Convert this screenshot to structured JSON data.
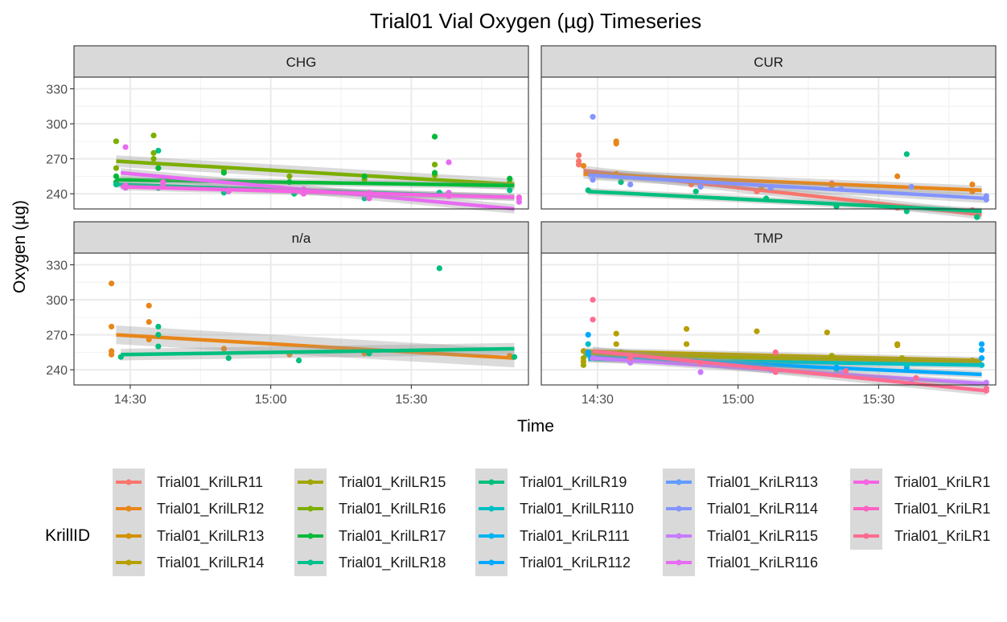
{
  "chart_data": {
    "type": "scatter",
    "title": "Trial01 Vial Oxygen (µg) Timeseries",
    "xlabel": "Time",
    "ylabel": "Oxygen (µg)",
    "x_ticks": [
      "14:30",
      "15:00",
      "15:30"
    ],
    "y_ticks": [
      240,
      270,
      300,
      330
    ],
    "xlim": [
      "14:18",
      "15:55"
    ],
    "ylim": [
      227,
      340
    ],
    "grid": true,
    "legend": {
      "title": "KrillID",
      "position": "bottom",
      "entries": [
        {
          "label": "Trial01_KrilLR11",
          "color": "#F8766D"
        },
        {
          "label": "Trial01_KrilLR12",
          "color": "#E7861B"
        },
        {
          "label": "Trial01_KrilLR13",
          "color": "#D39200"
        },
        {
          "label": "Trial01_KrilLR14",
          "color": "#B79F00"
        },
        {
          "label": "Trial01_KrilLR15",
          "color": "#A3A500"
        },
        {
          "label": "Trial01_KrilLR16",
          "color": "#7CAE00"
        },
        {
          "label": "Trial01_KrilLR17",
          "color": "#00BA38"
        },
        {
          "label": "Trial01_KrilLR18",
          "color": "#00C08B"
        },
        {
          "label": "Trial01_KrilLR19",
          "color": "#00BF7D"
        },
        {
          "label": "Trial01_KrilLR110",
          "color": "#00BFC4"
        },
        {
          "label": "Trial01_KriLR111",
          "color": "#00B4F0"
        },
        {
          "label": "Trial01_KriLR112",
          "color": "#00A9FF"
        },
        {
          "label": "Trial01_KriLR113",
          "color": "#619CFF"
        },
        {
          "label": "Trial01_KriLR114",
          "color": "#8494FF"
        },
        {
          "label": "Trial01_KriLR115",
          "color": "#C77CFF"
        },
        {
          "label": "Trial01_KriLR116",
          "color": "#E76BF3"
        },
        {
          "label": "Trial01_KriLR1",
          "color": "#F564E3"
        },
        {
          "label": "Trial01_KriLR1",
          "color": "#FF61C3"
        },
        {
          "label": "Trial01_KriLR1",
          "color": "#FF6C91"
        }
      ]
    },
    "panels": [
      {
        "name": "CHG",
        "series": [
          {
            "color": "#7CAE00",
            "fit": [
              [
                "14:27",
                268
              ],
              [
                "15:52",
                248
              ]
            ],
            "band": 5,
            "points": [
              [
                "14:27",
                285
              ],
              [
                "14:27",
                262
              ],
              [
                "14:35",
                290
              ],
              [
                "14:35",
                275
              ],
              [
                "14:35",
                270
              ],
              [
                "14:50",
                260
              ],
              [
                "15:04",
                255
              ],
              [
                "15:20",
                252
              ],
              [
                "15:35",
                265
              ],
              [
                "15:35",
                256
              ],
              [
                "15:51",
                250
              ]
            ]
          },
          {
            "color": "#00BA38",
            "fit": [
              [
                "14:27",
                252
              ],
              [
                "15:52",
                247
              ]
            ],
            "band": 3,
            "points": [
              [
                "14:27",
                255
              ],
              [
                "14:27",
                250
              ],
              [
                "14:36",
                262
              ],
              [
                "14:50",
                258
              ],
              [
                "15:04",
                250
              ],
              [
                "15:20",
                255
              ],
              [
                "15:35",
                289
              ],
              [
                "15:35",
                258
              ],
              [
                "15:51",
                253
              ]
            ]
          },
          {
            "color": "#00C08B",
            "fit": [
              [
                "14:27",
                248
              ],
              [
                "15:52",
                237
              ]
            ],
            "band": 3,
            "points": [
              [
                "14:27",
                248
              ],
              [
                "14:36",
                245
              ],
              [
                "14:36",
                277
              ],
              [
                "14:50",
                241
              ],
              [
                "15:05",
                240
              ],
              [
                "15:20",
                236
              ],
              [
                "15:36",
                241
              ],
              [
                "15:51",
                243
              ]
            ]
          },
          {
            "color": "#E76BF3",
            "fit": [
              [
                "14:28",
                258
              ],
              [
                "15:52",
                227
              ]
            ],
            "band": 4,
            "points": [
              [
                "14:29",
                280
              ],
              [
                "14:29",
                245
              ],
              [
                "14:37",
                248
              ],
              [
                "14:51",
                242
              ],
              [
                "15:07",
                244
              ],
              [
                "15:21",
                241
              ],
              [
                "15:38",
                267
              ],
              [
                "15:38",
                241
              ],
              [
                "15:53",
                236
              ],
              [
                "15:53",
                233
              ]
            ]
          },
          {
            "color": "#F564E3",
            "fit": [
              [
                "14:28",
                246
              ],
              [
                "15:52",
                237
              ]
            ],
            "band": 3,
            "points": [
              [
                "14:29",
                247
              ],
              [
                "14:37",
                250
              ],
              [
                "14:51",
                243
              ],
              [
                "15:07",
                240
              ],
              [
                "15:21",
                236
              ],
              [
                "15:38",
                238
              ],
              [
                "15:53",
                237
              ]
            ]
          }
        ]
      },
      {
        "name": "CUR",
        "series": [
          {
            "color": "#F8766D",
            "fit": [
              [
                "14:27",
                260
              ],
              [
                "15:52",
                222
              ]
            ],
            "band": 4,
            "points": [
              [
                "14:26",
                273
              ],
              [
                "14:26",
                268
              ],
              [
                "14:26",
                265
              ],
              [
                "14:35",
                250
              ],
              [
                "14:50",
                248
              ],
              [
                "15:04",
                242
              ],
              [
                "15:20",
                249
              ],
              [
                "15:34",
                228
              ],
              [
                "15:50",
                226
              ]
            ]
          },
          {
            "color": "#E7861B",
            "fit": [
              [
                "14:27",
                257
              ],
              [
                "15:52",
                243
              ]
            ],
            "band": 4,
            "points": [
              [
                "14:27",
                264
              ],
              [
                "14:34",
                283
              ],
              [
                "14:34",
                285
              ],
              [
                "14:34",
                257
              ],
              [
                "14:50",
                250
              ],
              [
                "15:05",
                246
              ],
              [
                "15:20",
                247
              ],
              [
                "15:34",
                255
              ],
              [
                "15:50",
                248
              ],
              [
                "15:50",
                242
              ]
            ]
          },
          {
            "color": "#00BF7D",
            "fit": [
              [
                "14:28",
                242
              ],
              [
                "15:52",
                225
              ]
            ],
            "band": 3,
            "points": [
              [
                "14:28",
                243
              ],
              [
                "14:35",
                250
              ],
              [
                "14:51",
                242
              ],
              [
                "15:06",
                236
              ],
              [
                "15:21",
                229
              ],
              [
                "15:36",
                274
              ],
              [
                "15:36",
                225
              ],
              [
                "15:51",
                220
              ]
            ]
          },
          {
            "color": "#8494FF",
            "fit": [
              [
                "14:28",
                256
              ],
              [
                "15:53",
                236
              ]
            ],
            "band": 4,
            "points": [
              [
                "14:29",
                306
              ],
              [
                "14:29",
                252
              ],
              [
                "14:37",
                248
              ],
              [
                "14:52",
                246
              ],
              [
                "15:07",
                245
              ],
              [
                "15:22",
                244
              ],
              [
                "15:37",
                246
              ],
              [
                "15:53",
                238
              ],
              [
                "15:53",
                235
              ]
            ]
          }
        ]
      },
      {
        "name": "n/a",
        "series": [
          {
            "color": "#E7861B",
            "fit": [
              [
                "14:27",
                270
              ],
              [
                "15:52",
                250
              ]
            ],
            "band": 8,
            "points": [
              [
                "14:26",
                314
              ],
              [
                "14:26",
                277
              ],
              [
                "14:26",
                256
              ],
              [
                "14:26",
                253
              ],
              [
                "14:34",
                295
              ],
              [
                "14:34",
                281
              ],
              [
                "14:34",
                266
              ],
              [
                "14:50",
                258
              ],
              [
                "15:04",
                253
              ],
              [
                "15:20",
                254
              ],
              [
                "15:51",
                252
              ]
            ]
          },
          {
            "color": "#00BF7D",
            "fit": [
              [
                "14:28",
                253
              ],
              [
                "15:52",
                258
              ]
            ],
            "band": 5,
            "points": [
              [
                "14:28",
                251
              ],
              [
                "14:36",
                277
              ],
              [
                "14:36",
                270
              ],
              [
                "14:36",
                260
              ],
              [
                "14:51",
                250
              ],
              [
                "15:06",
                248
              ],
              [
                "15:21",
                254
              ],
              [
                "15:36",
                327
              ],
              [
                "15:52",
                251
              ]
            ]
          }
        ]
      },
      {
        "name": "TMP",
        "series": [
          {
            "color": "#B79F00",
            "fit": [
              [
                "14:27",
                256
              ],
              [
                "15:52",
                248
              ]
            ],
            "band": 3,
            "points": [
              [
                "14:27",
                256
              ],
              [
                "14:27",
                247
              ],
              [
                "14:34",
                271
              ],
              [
                "14:34",
                262
              ],
              [
                "14:49",
                275
              ],
              [
                "14:49",
                262
              ],
              [
                "15:04",
                273
              ],
              [
                "15:19",
                272
              ],
              [
                "15:34",
                262
              ],
              [
                "15:34",
                261
              ],
              [
                "15:50",
                248
              ]
            ]
          },
          {
            "color": "#A3A500",
            "fit": [
              [
                "14:27",
                253
              ],
              [
                "15:52",
                246
              ]
            ],
            "band": 3,
            "points": [
              [
                "14:27",
                250
              ],
              [
                "14:27",
                244
              ],
              [
                "14:35",
                255
              ],
              [
                "14:50",
                249
              ],
              [
                "15:05",
                244
              ],
              [
                "15:20",
                252
              ],
              [
                "15:35",
                250
              ],
              [
                "15:51",
                246
              ]
            ]
          },
          {
            "color": "#00BFC4",
            "fit": [
              [
                "14:28",
                249
              ],
              [
                "15:52",
                244
              ]
            ],
            "band": 3,
            "points": [
              [
                "14:28",
                262
              ],
              [
                "14:28",
                253
              ],
              [
                "14:36",
                250
              ],
              [
                "14:51",
                247
              ],
              [
                "15:06",
                244
              ],
              [
                "15:21",
                240
              ],
              [
                "15:36",
                242
              ],
              [
                "15:52",
                244
              ]
            ]
          },
          {
            "color": "#00A9FF",
            "fit": [
              [
                "14:28",
                251
              ],
              [
                "15:52",
                236
              ]
            ],
            "band": 3,
            "points": [
              [
                "14:28",
                270
              ],
              [
                "14:28",
                255
              ],
              [
                "14:36",
                249
              ],
              [
                "14:51",
                247
              ],
              [
                "15:06",
                244
              ],
              [
                "15:21",
                242
              ],
              [
                "15:36",
                240
              ],
              [
                "15:52",
                262
              ],
              [
                "15:52",
                257
              ],
              [
                "15:52",
                250
              ]
            ]
          },
          {
            "color": "#C77CFF",
            "fit": [
              [
                "14:29",
                250
              ],
              [
                "15:53",
                228
              ]
            ],
            "band": 3,
            "points": [
              [
                "14:29",
                250
              ],
              [
                "14:37",
                246
              ],
              [
                "14:52",
                238
              ],
              [
                "15:07",
                240
              ],
              [
                "15:22",
                237
              ],
              [
                "15:37",
                231
              ],
              [
                "15:53",
                229
              ]
            ]
          },
          {
            "color": "#FF6C91",
            "fit": [
              [
                "14:29",
                256
              ],
              [
                "15:53",
                222
              ]
            ],
            "band": 4,
            "points": [
              [
                "14:29",
                300
              ],
              [
                "14:29",
                283
              ],
              [
                "14:37",
                250
              ],
              [
                "14:52",
                246
              ],
              [
                "15:08",
                255
              ],
              [
                "15:08",
                238
              ],
              [
                "15:23",
                239
              ],
              [
                "15:38",
                233
              ],
              [
                "15:53",
                224
              ],
              [
                "15:53",
                222
              ]
            ]
          }
        ]
      }
    ]
  }
}
